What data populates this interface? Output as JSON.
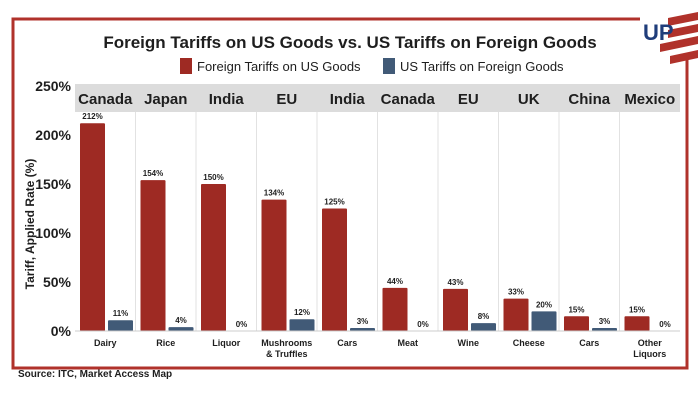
{
  "logo_text": "UP",
  "chart_data": {
    "type": "bar",
    "title": "Foreign Tariffs on US Goods vs. US Tariffs on Foreign Goods",
    "ylabel": "Tariff, Applied Rate (%)",
    "xlabel": "",
    "ylim": [
      0,
      250
    ],
    "yticks": [
      0,
      50,
      100,
      150,
      200,
      250
    ],
    "ytick_labels": [
      "0%",
      "50%",
      "100%",
      "150%",
      "200%",
      "250%"
    ],
    "grid": false,
    "legend_position": "top-center",
    "countries": [
      "Canada",
      "Japan",
      "India",
      "EU",
      "India",
      "Canada",
      "EU",
      "UK",
      "China",
      "Mexico"
    ],
    "categories": [
      "Dairy",
      "Rice",
      "Liquor",
      "Mushrooms & Truffles",
      "Cars",
      "Meat",
      "Wine",
      "Cheese",
      "Cars",
      "Other Liquors"
    ],
    "series": [
      {
        "name": "Foreign Tariffs on US Goods",
        "color": "#9e2a23",
        "values": [
          212,
          154,
          150,
          134,
          125,
          44,
          43,
          33,
          15,
          15
        ]
      },
      {
        "name": "US Tariffs on Foreign Goods",
        "color": "#415a77",
        "values": [
          11,
          4,
          0,
          12,
          3,
          0,
          8,
          20,
          3,
          0
        ]
      }
    ],
    "source": "Source: ITC, Market Access Map"
  },
  "colors": {
    "frame": "#b0322b",
    "header_band": "#dcdcdc",
    "logo_blue": "#1f3d7a"
  }
}
